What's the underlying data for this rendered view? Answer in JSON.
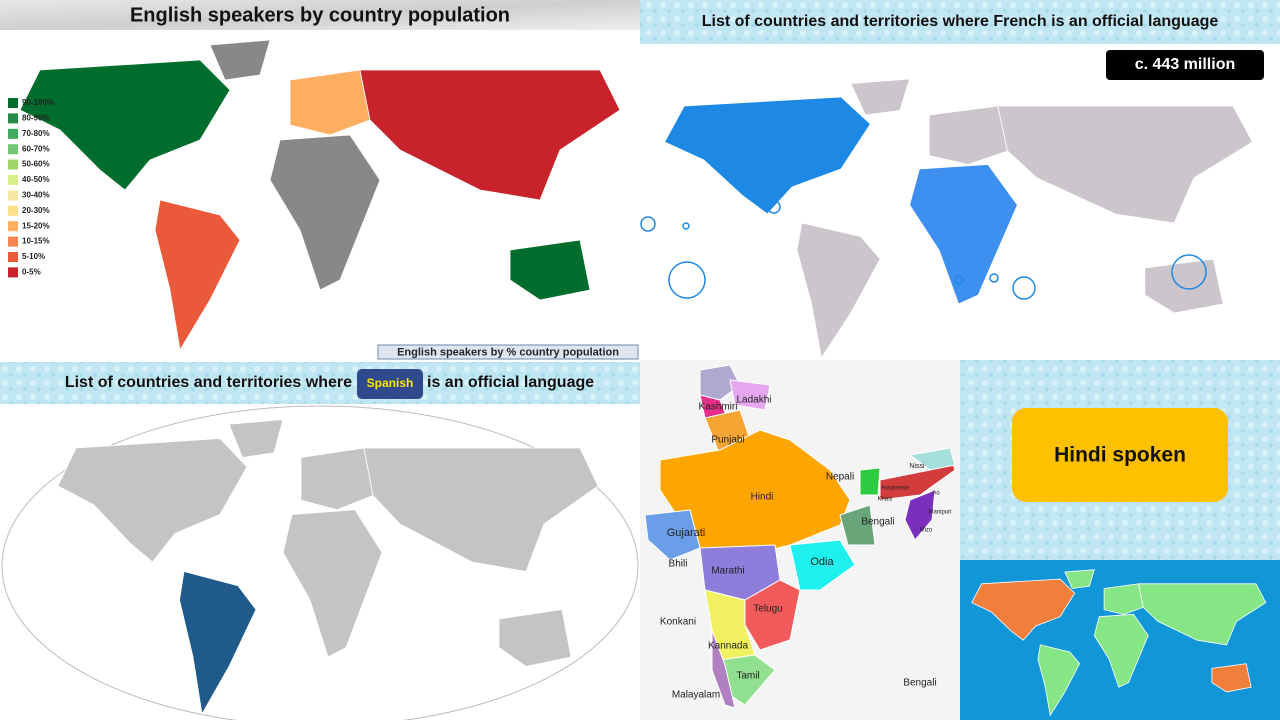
{
  "english": {
    "title": "English speakers by country population",
    "legend": [
      {
        "label": "90-100%",
        "color": "#006d2c"
      },
      {
        "label": "80-90%",
        "color": "#238b45"
      },
      {
        "label": "70-80%",
        "color": "#41ab5d"
      },
      {
        "label": "60-70%",
        "color": "#74c476"
      },
      {
        "label": "50-60%",
        "color": "#a1d76a"
      },
      {
        "label": "40-50%",
        "color": "#d9ef8b"
      },
      {
        "label": "30-40%",
        "color": "#f6e8a0"
      },
      {
        "label": "20-30%",
        "color": "#fee08b"
      },
      {
        "label": "15-20%",
        "color": "#fdae61"
      },
      {
        "label": "10-15%",
        "color": "#f4874f"
      },
      {
        "label": "5-10%",
        "color": "#ea5a3a"
      },
      {
        "label": "0-5%",
        "color": "#c8232a"
      }
    ],
    "caption": "English speakers by % country population"
  },
  "french": {
    "title": "List of countries and territories where French is an official language",
    "badge": "c. 443 million"
  },
  "spanish": {
    "title_before": "List of countries and territories where",
    "highlight": "Spanish",
    "title_after": "is an official language"
  },
  "india": {
    "labels": [
      "Kashmiri",
      "Ladakhi",
      "Punjabi",
      "Hindi",
      "Nepali",
      "Nissi",
      "Assamese",
      "Khasi",
      "Ao",
      "Manipuri",
      "Mizo",
      "Bengali",
      "Gujarati",
      "Bhili",
      "Marathi",
      "Odia",
      "Telugu",
      "Konkani",
      "Kannada",
      "Tamil",
      "Malayalam",
      "Bengali"
    ]
  },
  "hindi": {
    "label": "Hindi spoken"
  }
}
